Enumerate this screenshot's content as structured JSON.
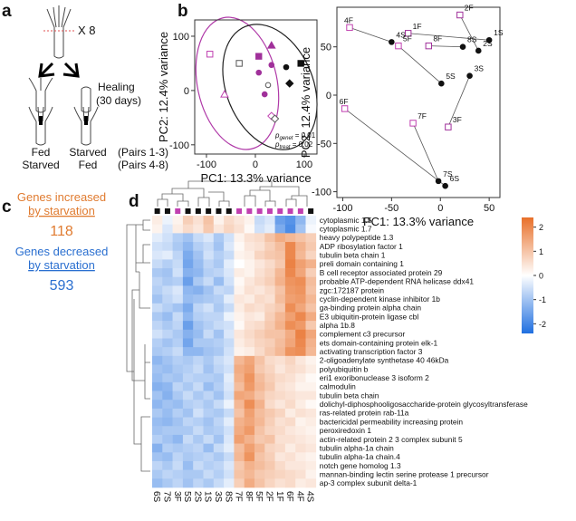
{
  "panels": {
    "a": "a",
    "b": "b",
    "c": "c",
    "d": "d"
  },
  "panel_a": {
    "times": "X 8",
    "healing": "Healing",
    "days": "(30 days)",
    "left_top": "Fed",
    "left_bottom": "Starved",
    "right_top": "Starved",
    "right_bottom": "Fed",
    "pairs_top": "(Pairs 1-3)",
    "pairs_bottom": "(Pairs 4-8)"
  },
  "panel_c": {
    "inc_line1": "Genes increased",
    "inc_line2": "by starvation",
    "inc_count": "118",
    "dec_line1": "Genes decreased",
    "dec_line2": "by starvation",
    "dec_count": "593",
    "inc_color": "#e07b30",
    "dec_color": "#2a6fd0"
  },
  "chart_data": [
    {
      "type": "scatter",
      "xlabel": "PC1: 13.3% variance",
      "ylabel": "PC2: 12.4% variance",
      "xlim": [
        -124,
        126
      ],
      "ylim": [
        -117,
        130
      ],
      "xticks": [
        -100,
        0,
        100
      ],
      "yticks": [
        -100,
        0,
        100
      ],
      "annotations": [
        {
          "p": "p",
          "sub": "genet",
          "text": " = 0.01"
        },
        {
          "p": "p",
          "sub": "treat",
          "text": " = 0.02"
        }
      ],
      "points": [
        {
          "x": -93,
          "y": 67,
          "shape": "square",
          "color": "#c040b0",
          "filled": false
        },
        {
          "x": -33,
          "y": 50,
          "shape": "square",
          "color": "#555555",
          "filled": false
        },
        {
          "x": 7,
          "y": 63,
          "shape": "square",
          "color": "#a0309a",
          "filled": true
        },
        {
          "x": 33,
          "y": 83,
          "shape": "triangle",
          "color": "#a0309a",
          "filled": true
        },
        {
          "x": 63,
          "y": 43,
          "shape": "circle",
          "color": "#111111",
          "filled": true
        },
        {
          "x": 93,
          "y": 50,
          "shape": "square",
          "color": "#111111",
          "filled": true
        },
        {
          "x": 33,
          "y": 47,
          "shape": "circle",
          "color": "#a0309a",
          "filled": true
        },
        {
          "x": 7,
          "y": 33,
          "shape": "circle",
          "color": "#a0309a",
          "filled": true
        },
        {
          "x": 70,
          "y": 13,
          "shape": "diamond",
          "color": "#111111",
          "filled": true
        },
        {
          "x": 26,
          "y": 10,
          "shape": "circle",
          "color": "#555555",
          "filled": false
        },
        {
          "x": 19,
          "y": -7,
          "shape": "circle",
          "color": "#a0309a",
          "filled": true
        },
        {
          "x": -63,
          "y": -7,
          "shape": "triangle",
          "color": "#c040b0",
          "filled": false
        },
        {
          "x": 33,
          "y": -47,
          "shape": "diamond",
          "color": "#c040b0",
          "filled": false
        },
        {
          "x": 40,
          "y": -52,
          "shape": "diamond",
          "color": "#555555",
          "filled": false
        }
      ]
    },
    {
      "type": "scatter",
      "xlabel": "PC1: 13.3% variance",
      "ylabel": "PC2: 12.4% variance",
      "xlim": [
        -106,
        61
      ],
      "ylim": [
        -106,
        91
      ],
      "xticks": [
        -100,
        -50,
        0,
        50
      ],
      "yticks": [
        -100,
        -50,
        0,
        50
      ],
      "points": [
        {
          "label": "1S",
          "x": 50,
          "y": 57,
          "color": "#111111"
        },
        {
          "label": "1F",
          "x": -33,
          "y": 64,
          "color": "#a0309a"
        },
        {
          "label": "2S",
          "x": 39,
          "y": 46,
          "color": "#111111"
        },
        {
          "label": "2F",
          "x": 20,
          "y": 83,
          "color": "#a0309a"
        },
        {
          "label": "3S",
          "x": 30,
          "y": 20,
          "color": "#111111"
        },
        {
          "label": "3F",
          "x": 8,
          "y": -33,
          "color": "#a0309a"
        },
        {
          "label": "4S",
          "x": -50,
          "y": 55,
          "color": "#111111"
        },
        {
          "label": "4F",
          "x": -93,
          "y": 70,
          "color": "#c040b0"
        },
        {
          "label": "5S",
          "x": 1,
          "y": 12,
          "color": "#111111"
        },
        {
          "label": "5F",
          "x": -43,
          "y": 51,
          "color": "#c040b0"
        },
        {
          "label": "6S",
          "x": 5,
          "y": -94,
          "color": "#111111"
        },
        {
          "label": "6F",
          "x": -98,
          "y": -14,
          "color": "#c040b0"
        },
        {
          "label": "7S",
          "x": -2,
          "y": -89,
          "color": "#111111"
        },
        {
          "label": "7F",
          "x": -28,
          "y": -29,
          "color": "#c040b0"
        },
        {
          "label": "8S",
          "x": 23,
          "y": 50,
          "color": "#111111"
        },
        {
          "label": "8F",
          "x": -12,
          "y": 51,
          "color": "#a0309a"
        }
      ]
    },
    {
      "type": "heatmap",
      "clim": [
        -2.4,
        2.4
      ],
      "cticks": [
        -2,
        -1,
        0,
        1,
        2
      ],
      "low_color": "#1f6fe0",
      "mid_color": "#ffffff",
      "high_color": "#e8702a",
      "columns": [
        "6S",
        "7S",
        "3F",
        "5S",
        "2S",
        "1S",
        "3S",
        "8S",
        "7F",
        "8F",
        "5F",
        "2F",
        "1F",
        "6F",
        "4F",
        "4S"
      ],
      "column_colors": [
        "#111111",
        "#111111",
        "#c040b0",
        "#111111",
        "#111111",
        "#111111",
        "#111111",
        "#111111",
        "#c040b0",
        "#c040b0",
        "#c040b0",
        "#c040b0",
        "#c040b0",
        "#c040b0",
        "#c040b0",
        "#111111"
      ],
      "rows": [
        "cytoplasmic 1.5",
        "cytoplasmic 1.7",
        "heavy polypeptide 1.3",
        "ADP ribosylation factor 1",
        "tubulin beta chain 1",
        "preli domain containing 1",
        "B cell receptor associated protein 29",
        "probable ATP-dependent RNA helicase ddx41",
        "zgc:172187 protein",
        "cyclin-dependent kinase inhibitor 1b",
        "ga-binding protein alpha chain",
        "E3 ubiquitin-protein ligase cbl",
        "alpha 1b.8",
        "complement c3 precursor",
        "ets domain-containing protein elk-1",
        "activating transcription factor 3",
        "2-oligoadenylate synthetase 40 46kDa",
        "polyubiquitin b",
        "eri1 exoribonuclease 3 isoform 2",
        "calmodulin",
        "tubulin beta chain",
        "dolichyl-diphosphooligosaccharide-protein glycosyltransferase",
        "ras-related protein rab-11a",
        "bactericidal permeability increasing protein",
        "peroxiredoxin 1",
        "actin-related protein 2 3 complex subunit 5",
        "tubulin alpha-1a chain",
        "tubulin alpha-1a chain.4",
        "notch gene homolog 1.3",
        "mannan-binding lectin serine protease 1 precursor",
        "ap-3 complex subunit delta-1"
      ],
      "values": [
        [
          0.3,
          -0.2,
          0.2,
          0.8,
          0.5,
          1.0,
          0.2,
          0.6,
          0.4,
          0.2,
          -0.6,
          -0.4,
          -1.6,
          -1.8,
          -1.2,
          -0.2
        ],
        [
          0.2,
          -0.4,
          0.3,
          0.6,
          0.4,
          0.9,
          0.4,
          0.7,
          0.5,
          0.1,
          -0.5,
          -0.3,
          -1.4,
          -1.9,
          -1.0,
          -0.1
        ],
        [
          -0.3,
          -0.5,
          -0.8,
          -1.0,
          -0.6,
          -0.4,
          -0.9,
          -0.5,
          0.2,
          0.5,
          0.6,
          1.0,
          1.4,
          1.2,
          1.0,
          0.8
        ],
        [
          -0.5,
          -0.6,
          -0.9,
          -1.2,
          -0.8,
          -0.6,
          -1.0,
          -0.4,
          0.1,
          0.4,
          0.5,
          0.8,
          1.1,
          2.0,
          1.3,
          0.9
        ],
        [
          -0.4,
          -0.3,
          -0.7,
          -1.4,
          -1.0,
          -0.5,
          -0.8,
          -0.6,
          0.2,
          0.3,
          0.7,
          0.9,
          1.0,
          2.0,
          1.2,
          0.7
        ],
        [
          -0.6,
          -0.8,
          -0.6,
          -1.5,
          -1.1,
          -0.7,
          -0.9,
          -0.3,
          0.0,
          0.2,
          0.4,
          0.6,
          0.9,
          2.1,
          1.6,
          1.3
        ],
        [
          -0.9,
          -1.0,
          -0.5,
          -1.3,
          -1.2,
          -0.8,
          -0.7,
          -0.4,
          0.3,
          0.2,
          0.5,
          0.7,
          1.2,
          2.0,
          1.5,
          0.8
        ],
        [
          -0.7,
          -0.9,
          -0.8,
          -1.6,
          -0.9,
          -0.6,
          -1.1,
          -0.5,
          0.1,
          0.4,
          0.6,
          0.8,
          1.3,
          1.8,
          1.9,
          1.1
        ],
        [
          -0.8,
          -0.6,
          -0.4,
          -1.2,
          -1.3,
          -1.0,
          -0.6,
          -0.7,
          0.2,
          0.5,
          0.4,
          0.6,
          1.0,
          1.7,
          1.8,
          1.0
        ],
        [
          -1.0,
          -0.7,
          -0.5,
          -1.1,
          -1.0,
          -0.9,
          -0.8,
          -0.3,
          0.4,
          0.3,
          0.6,
          0.5,
          1.1,
          1.6,
          1.7,
          1.2
        ],
        [
          -0.6,
          -0.8,
          -1.0,
          -1.4,
          -0.7,
          -0.5,
          -0.9,
          -0.6,
          0.3,
          0.6,
          0.5,
          0.7,
          0.9,
          1.9,
          1.5,
          1.0
        ],
        [
          -0.9,
          -1.1,
          -0.6,
          -1.2,
          -0.8,
          -0.7,
          -0.7,
          -0.2,
          0.2,
          0.4,
          0.3,
          0.8,
          1.2,
          1.6,
          2.0,
          1.4
        ],
        [
          -0.7,
          -0.9,
          -0.7,
          -1.6,
          -1.0,
          -0.8,
          -0.6,
          -0.5,
          0.1,
          0.5,
          0.6,
          0.9,
          1.3,
          1.9,
          1.7,
          0.9
        ],
        [
          -0.5,
          -0.7,
          -0.9,
          -1.3,
          -1.1,
          -0.6,
          -1.0,
          -0.4,
          0.4,
          0.6,
          0.8,
          1.0,
          1.0,
          1.4,
          2.1,
          1.5
        ],
        [
          -0.8,
          -1.0,
          -0.8,
          -1.5,
          -0.9,
          -0.9,
          -0.8,
          -0.6,
          0.3,
          0.5,
          0.7,
          0.8,
          1.1,
          1.5,
          2.0,
          1.3
        ],
        [
          -0.9,
          -0.8,
          -0.6,
          -1.2,
          -1.2,
          -1.0,
          -0.9,
          -0.5,
          0.2,
          0.3,
          0.6,
          0.9,
          1.2,
          1.8,
          1.9,
          1.2
        ],
        [
          -1.2,
          -1.0,
          -0.8,
          -0.9,
          -0.7,
          -0.9,
          -0.6,
          -0.4,
          1.2,
          1.5,
          1.0,
          0.6,
          0.5,
          0.7,
          0.4,
          0.2
        ],
        [
          -1.0,
          -1.1,
          -0.9,
          -0.8,
          -0.6,
          -1.0,
          -0.7,
          -0.5,
          1.4,
          1.6,
          0.9,
          0.7,
          0.4,
          0.6,
          0.5,
          0.3
        ],
        [
          -1.1,
          -0.9,
          -1.0,
          -0.7,
          -0.8,
          -0.8,
          -0.9,
          -0.3,
          1.3,
          1.8,
          1.1,
          0.8,
          0.6,
          0.5,
          0.3,
          0.1
        ],
        [
          -1.3,
          -1.2,
          -0.7,
          -0.9,
          -0.6,
          -1.1,
          -0.8,
          -0.4,
          1.1,
          1.7,
          1.2,
          0.9,
          0.5,
          0.4,
          0.2,
          0.2
        ],
        [
          -1.0,
          -1.3,
          -0.9,
          -0.6,
          -0.9,
          -0.7,
          -1.0,
          -0.5,
          1.5,
          1.4,
          1.0,
          0.7,
          0.6,
          0.5,
          0.4,
          0.4
        ],
        [
          -1.2,
          -1.0,
          -1.1,
          -0.8,
          -0.7,
          -0.9,
          -0.6,
          -0.2,
          1.2,
          1.9,
          1.3,
          0.6,
          0.4,
          0.6,
          0.3,
          0.1
        ],
        [
          -0.9,
          -1.1,
          -0.8,
          -1.0,
          -0.5,
          -0.8,
          -0.9,
          -0.6,
          1.0,
          1.6,
          1.1,
          0.9,
          0.7,
          0.3,
          0.5,
          0.4
        ],
        [
          -1.1,
          -1.2,
          -1.0,
          -0.7,
          -0.8,
          -1.0,
          -0.7,
          -0.3,
          1.3,
          1.5,
          1.2,
          0.8,
          0.5,
          0.6,
          0.2,
          0.3
        ],
        [
          -1.0,
          -0.9,
          -0.9,
          -0.9,
          -0.6,
          -0.9,
          -0.8,
          -0.5,
          1.4,
          1.7,
          1.0,
          0.7,
          0.6,
          0.4,
          0.3,
          0.2
        ],
        [
          -0.8,
          -1.0,
          -1.2,
          -0.6,
          -0.9,
          -0.6,
          -1.0,
          -0.4,
          1.6,
          1.3,
          0.9,
          1.0,
          0.5,
          0.5,
          0.4,
          0.3
        ],
        [
          -1.3,
          -0.8,
          -0.9,
          -0.8,
          -0.7,
          -1.1,
          -0.6,
          -0.3,
          1.1,
          1.6,
          1.2,
          0.7,
          0.6,
          0.3,
          0.5,
          0.4
        ],
        [
          -1.0,
          -1.1,
          -0.7,
          -0.9,
          -0.8,
          -0.7,
          -0.9,
          -0.6,
          1.2,
          1.8,
          1.0,
          0.8,
          0.4,
          0.5,
          0.3,
          0.2
        ],
        [
          -0.7,
          -0.9,
          -0.6,
          -1.1,
          -0.6,
          -0.8,
          -0.7,
          -0.4,
          0.9,
          1.3,
          1.1,
          0.9,
          0.6,
          0.4,
          0.4,
          0.3
        ],
        [
          -0.9,
          -0.7,
          -0.8,
          -0.9,
          -0.9,
          -0.6,
          -0.8,
          -0.5,
          1.0,
          1.2,
          0.9,
          0.8,
          0.7,
          0.6,
          0.5,
          0.2
        ],
        [
          -1.1,
          -0.9,
          -0.7,
          -1.0,
          -0.7,
          -0.9,
          -0.6,
          -0.3,
          0.8,
          1.4,
          1.0,
          0.7,
          0.5,
          0.6,
          0.3,
          0.4
        ]
      ]
    }
  ]
}
